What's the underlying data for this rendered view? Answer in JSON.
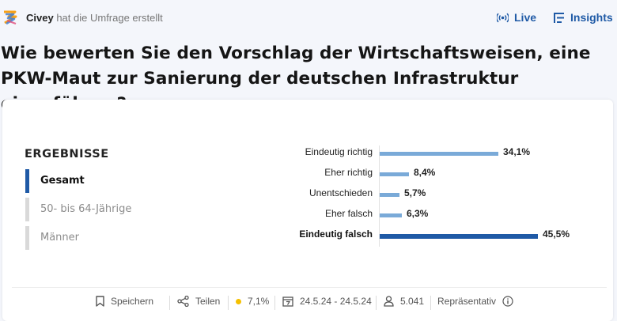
{
  "header": {
    "author": "Civey",
    "action": "hat die Umfrage erstellt",
    "live_label": "Live",
    "insights_label": "Insights",
    "icons": [
      "civey-logo-icon",
      "live-broadcast-icon",
      "insights-list-icon"
    ]
  },
  "question": "Wie bewerten Sie den Vorschlag der Wirtschaftsweisen, eine PKW-Maut zur Sanierung der deutschen Infrastruktur einzuführen?",
  "results": {
    "title": "ERGEBNISSE",
    "segments": [
      {
        "label": "Gesamt",
        "active": true
      },
      {
        "label": "50- bis 64-Jährige",
        "active": false
      },
      {
        "label": "Männer",
        "active": false
      }
    ]
  },
  "chart_data": {
    "type": "bar",
    "orientation": "horizontal",
    "categories": [
      "Eindeutig richtig",
      "Eher richtig",
      "Unentschieden",
      "Eher falsch",
      "Eindeutig falsch"
    ],
    "values": [
      34.1,
      8.4,
      5.7,
      6.3,
      45.5
    ],
    "value_labels": [
      "34,1%",
      "8,4%",
      "5,7%",
      "6,3%",
      "45,5%"
    ],
    "highlighted_index": 4,
    "colors": {
      "bar": "#7aaad8",
      "highlight": "#1f5aa6"
    },
    "unit": "%"
  },
  "footer": {
    "save_label": "Speichern",
    "share_label": "Teilen",
    "error_margin": "7,1%",
    "date_range": "24.5.24 - 24.5.24",
    "participants": "5.041",
    "representative_label": "Repräsentativ",
    "status_color": "#f5c000"
  },
  "colors": {
    "accent": "#1f5aa6",
    "background": "#f4f6fb"
  }
}
